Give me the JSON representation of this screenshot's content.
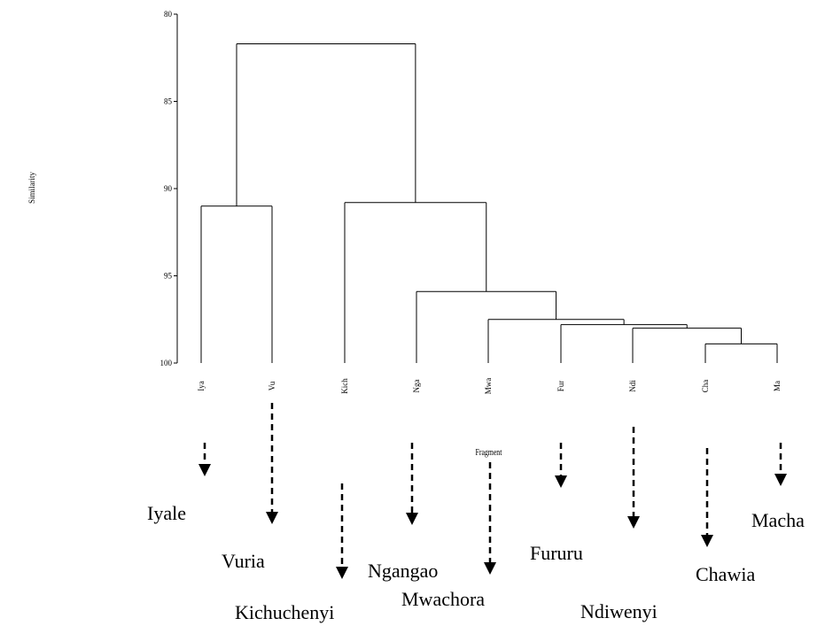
{
  "chart_data": {
    "type": "dendrogram",
    "ylabel": "Similarity",
    "xlabel": "Fragment",
    "ylim": [
      80,
      100
    ],
    "yticks": [
      80,
      85,
      90,
      95,
      100
    ],
    "leaves": [
      "Iya",
      "Vu",
      "Kich",
      "Nga",
      "Mwa",
      "Fur",
      "Ndi",
      "Cha",
      "Ma"
    ],
    "full_names": [
      "Iyale",
      "Vuria",
      "Kichuchenyi",
      "Ngangao",
      "Mwachora",
      "Fururu",
      "Ndiwenyi",
      "Chawia",
      "Macha"
    ],
    "merges": [
      {
        "cluster": [
          "Cha",
          "Ma"
        ],
        "similarity": 98.9
      },
      {
        "cluster": [
          "Ndi",
          "Cha",
          "Ma"
        ],
        "similarity": 98.0
      },
      {
        "cluster": [
          "Fur",
          "Ndi",
          "Cha",
          "Ma"
        ],
        "similarity": 97.8
      },
      {
        "cluster": [
          "Mwa",
          "Fur",
          "Ndi",
          "Cha",
          "Ma"
        ],
        "similarity": 97.5
      },
      {
        "cluster": [
          "Nga",
          "Mwa",
          "Fur",
          "Ndi",
          "Cha",
          "Ma"
        ],
        "similarity": 95.9
      },
      {
        "cluster": [
          "Iya",
          "Vu"
        ],
        "similarity": 91.0
      },
      {
        "cluster": [
          "Kich",
          "Nga",
          "Mwa",
          "Fur",
          "Ndi",
          "Cha",
          "Ma"
        ],
        "similarity": 90.8
      },
      {
        "cluster": [
          "Iya",
          "Vu",
          "Kich",
          "Nga",
          "Mwa",
          "Fur",
          "Ndi",
          "Cha",
          "Ma"
        ],
        "similarity": 81.7
      }
    ]
  }
}
